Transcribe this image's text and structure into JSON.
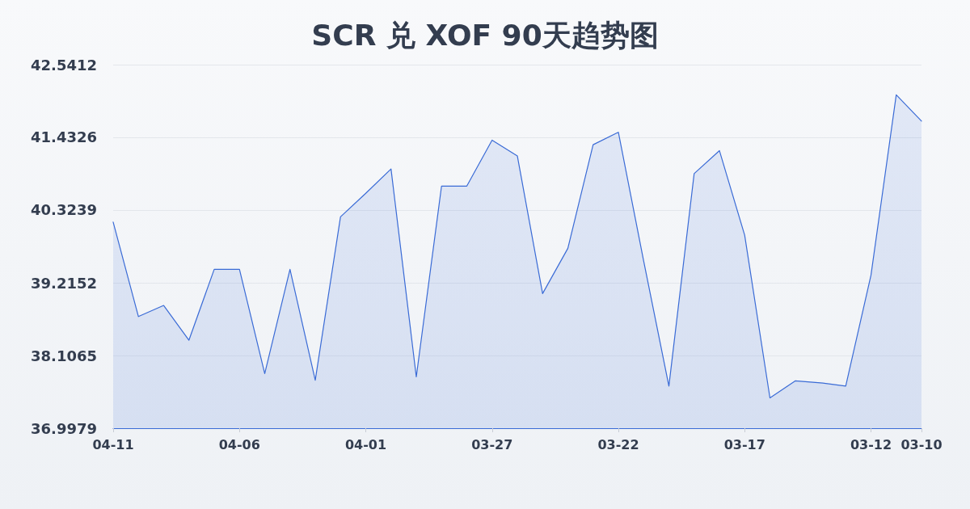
{
  "chart_data": {
    "type": "area",
    "title": "SCR 兑 XOF 90天趋势图",
    "categories": [
      "04-11",
      null,
      null,
      null,
      null,
      "04-06",
      null,
      null,
      null,
      null,
      "04-01",
      null,
      null,
      null,
      null,
      "03-27",
      null,
      null,
      null,
      null,
      "03-22",
      null,
      null,
      null,
      null,
      "03-17",
      null,
      null,
      null,
      null,
      "03-12",
      null,
      "03-10"
    ],
    "values": [
      40.14,
      38.7,
      38.87,
      38.34,
      39.42,
      39.42,
      37.83,
      39.42,
      37.73,
      40.22,
      40.58,
      40.95,
      37.78,
      40.69,
      40.69,
      41.39,
      41.15,
      39.05,
      39.74,
      41.32,
      41.51,
      39.55,
      37.64,
      40.88,
      41.23,
      39.94,
      37.46,
      37.72,
      37.69,
      37.64,
      39.33,
      42.08,
      41.68
    ],
    "color": "#3a6bd6",
    "ylim": [
      36.9979,
      42.5412
    ],
    "yticks": [
      36.9979,
      38.1065,
      39.2152,
      40.3239,
      41.4326,
      42.5412
    ],
    "grid": "y"
  }
}
